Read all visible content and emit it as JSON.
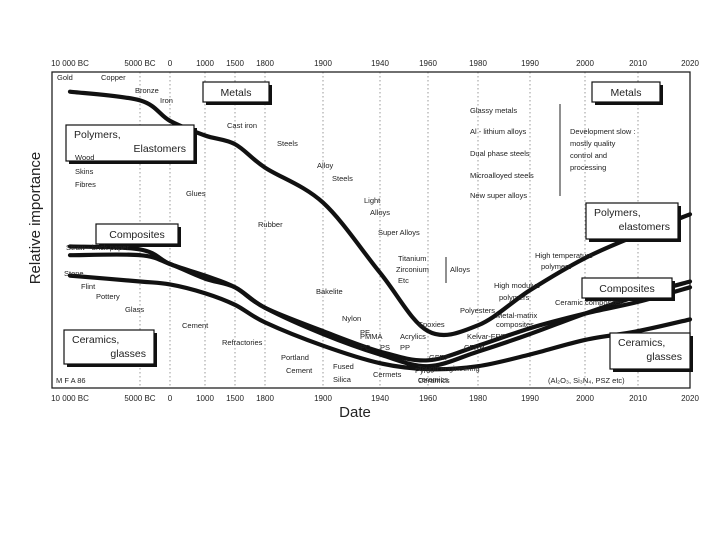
{
  "chart_data": {
    "type": "line",
    "title": "",
    "xlabel": "Date",
    "ylabel": "Relative importance",
    "ticks": [
      "10 000 BC",
      "5000 BC",
      "0",
      "1000",
      "1500",
      "1800",
      "1900",
      "1940",
      "1960",
      "1980",
      "1990",
      "2000",
      "2010",
      "2020"
    ],
    "credit": "M F A 86",
    "series": [
      {
        "name": "Metals",
        "x": [
          "10 000 BC",
          "5000 BC",
          "0",
          "1000",
          "1500",
          "1800",
          "1900",
          "1940",
          "1960",
          "1980",
          "1990",
          "2000",
          "2010",
          "2020"
        ],
        "values": [
          96,
          93,
          86,
          81,
          78,
          70,
          58,
          34,
          14,
          16,
          28,
          39,
          47,
          54
        ]
      },
      {
        "name": "Polymers, elastomers",
        "x": [
          "10 000 BC",
          "5000 BC",
          "0",
          "1000",
          "1500",
          "1800",
          "1900",
          "1940",
          "1960",
          "1980",
          "1990",
          "2000",
          "2010",
          "2020"
        ],
        "values": [
          40,
          40,
          37,
          32,
          29,
          22,
          13,
          6,
          2,
          7,
          13,
          20,
          26,
          31
        ]
      },
      {
        "name": "Composites",
        "x": [
          "10 000 BC",
          "5000 BC",
          "0",
          "1000",
          "1500",
          "1800",
          "1900",
          "1940",
          "1960",
          "1980",
          "1990",
          "2000",
          "2010",
          "2020"
        ],
        "values": [
          43,
          42,
          37,
          33,
          29,
          22,
          14,
          7,
          4,
          9,
          15,
          20,
          24,
          29
        ]
      },
      {
        "name": "Ceramics, glasses",
        "x": [
          "10 000 BC",
          "5000 BC",
          "0",
          "1000",
          "1500",
          "1800",
          "1900",
          "1940",
          "1960",
          "1980",
          "1990",
          "2000",
          "2010",
          "2020"
        ],
        "values": [
          33,
          31,
          30,
          27,
          23,
          17,
          9,
          3,
          1,
          2,
          6,
          11,
          14,
          18
        ]
      }
    ],
    "ylim": [
      0,
      100
    ],
    "grid": "vertical",
    "legend": "boxed labels on the curves"
  },
  "boxes": [
    {
      "id": "metals-left",
      "lines": [
        "Metals"
      ]
    },
    {
      "id": "metals-right",
      "lines": [
        "Metals"
      ]
    },
    {
      "id": "polymers-left",
      "lines": [
        "Polymers,",
        "Elastomers"
      ]
    },
    {
      "id": "polymers-right",
      "lines": [
        "Polymers,",
        "elastomers"
      ]
    },
    {
      "id": "composites-left",
      "lines": [
        "Composites"
      ]
    },
    {
      "id": "composites-right",
      "lines": [
        "Composites"
      ]
    },
    {
      "id": "ceramics-left",
      "lines": [
        "Ceramics,",
        "glasses"
      ]
    },
    {
      "id": "ceramics-right",
      "lines": [
        "Ceramics,",
        "glasses"
      ]
    }
  ],
  "labels": [
    "Gold",
    "Copper",
    "Bronze",
    "Iron",
    "Cast iron",
    "Steels",
    "Alloy",
    "Steels",
    "Light",
    "Alloys",
    "Super Alloys",
    "Titanium",
    "Zirconium",
    "Etc",
    "Alloys",
    "Wood",
    "Skins",
    "Fibres",
    "Glues",
    "Rubber",
    "Bakelite",
    "Nylon",
    "PE",
    "PMMA",
    "PC",
    "PS",
    "Acrylics",
    "PP",
    "Epoxies",
    "Polyesters",
    "Straw - brick paper",
    "Stone",
    "Flint",
    "Pottery",
    "Glass",
    "Cement",
    "Refractories",
    "Portland",
    "Cement",
    "Fused",
    "Silica",
    "Cermets",
    "Pyro-",
    "Ceramics",
    "GFRP",
    "CFRP",
    "Kelvar-FRP",
    "Metal-matrix",
    "composites",
    "Ceramic composites",
    "Tough engineering",
    "ceramics",
    "(Al₂O₃, Si₃N₄, PSZ etc)",
    "Glassy metals",
    "Al - lithium alloys",
    "Dual phase steels",
    "Microalloyed steels",
    "New super alloys",
    "Development slow :",
    "mostly quality",
    "control and",
    "processing",
    "High temperature",
    "polymers",
    "High modulus",
    "polymers"
  ]
}
